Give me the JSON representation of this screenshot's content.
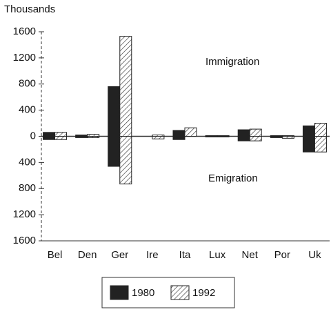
{
  "chart_data": {
    "type": "bar",
    "ylabel": "Thousands",
    "annotations": [
      "Immigration",
      "Emigration"
    ],
    "categories": [
      "Bel",
      "Den",
      "Ger",
      "Ire",
      "Ita",
      "Lux",
      "Net",
      "Por",
      "Uk"
    ],
    "series": [
      {
        "name": "1980",
        "color": "#222222",
        "pattern": "solid",
        "values": [
          60,
          20,
          760,
          null,
          90,
          10,
          100,
          10,
          160
        ],
        "emigration": [
          -50,
          -20,
          -460,
          null,
          -50,
          -10,
          -70,
          -20,
          -240
        ]
      },
      {
        "name": "1992",
        "color": "#ffffff",
        "pattern": "hatch",
        "values": [
          60,
          30,
          1530,
          20,
          130,
          10,
          110,
          10,
          200
        ],
        "emigration": [
          -50,
          -20,
          -730,
          -40,
          0,
          -10,
          -70,
          -30,
          -240
        ]
      }
    ],
    "ylim": [
      -1600,
      1600
    ],
    "yticks": [
      {
        "value": -1600,
        "label": "1600"
      },
      {
        "value": -1200,
        "label": "1200"
      },
      {
        "value": -800,
        "label": "800"
      },
      {
        "value": -400,
        "label": "400"
      },
      0,
      400,
      800,
      1200,
      1600
    ],
    "grid": false
  }
}
